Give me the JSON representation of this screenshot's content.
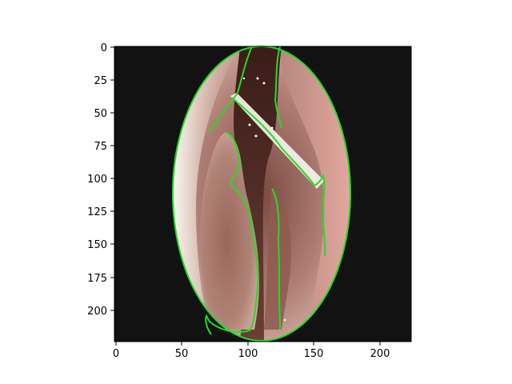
{
  "figure": {
    "image_description_tokens": [
      "endoscopy-image",
      "green-segmentation-contours"
    ],
    "background_color": "#121212",
    "contour_color": "#22dd22",
    "x_axis": {
      "ticks": [
        0,
        50,
        100,
        150,
        200
      ],
      "range": [
        0,
        224
      ]
    },
    "y_axis": {
      "ticks": [
        0,
        25,
        50,
        75,
        100,
        125,
        150,
        175,
        200
      ],
      "range": [
        0,
        224
      ],
      "inverted": true
    }
  }
}
